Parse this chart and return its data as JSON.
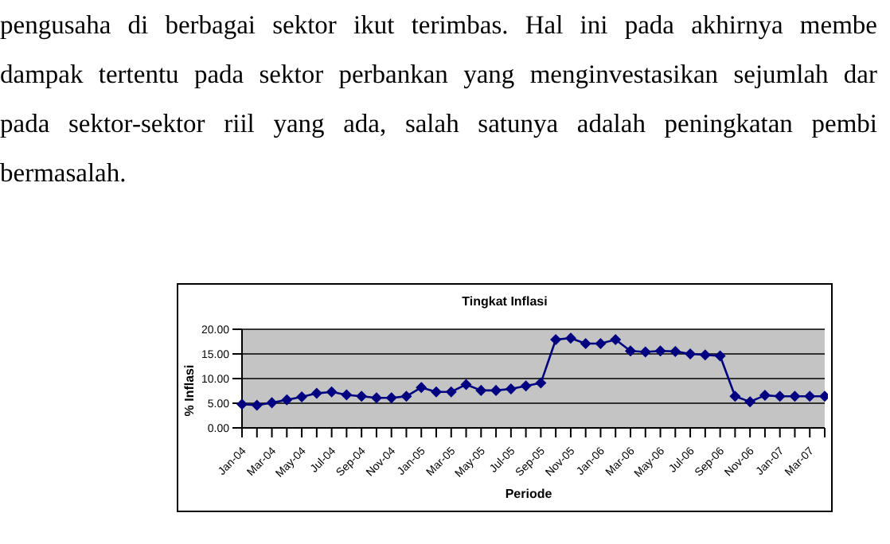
{
  "chart_data": {
    "type": "line",
    "title": "Tingkat Inflasi",
    "xlabel": "Periode",
    "ylabel": "% Inflasi",
    "annotations": [
      "pengusaha di berbagai sektor ikut terimbas. Hal ini pada akhirnya membe",
      "dampak tertentu pada sektor perbankan yang menginvestasikan sejumlah dar",
      "pada sektor-sektor riil yang ada, salah satunya adalah peningkatan pembi",
      "bermasalah."
    ],
    "categories": [
      "Jan-04",
      null,
      "Mar-04",
      null,
      "May-04",
      null,
      "Jul-04",
      null,
      "Sep-04",
      null,
      "Nov-04",
      null,
      "Jan-05",
      null,
      "Mar-05",
      null,
      "May-05",
      null,
      "Jul-05",
      null,
      "Sep-05",
      null,
      "Nov-05",
      null,
      "Jan-06",
      null,
      "Mar-06",
      null,
      "May-06",
      null,
      "Jul-06",
      null,
      "Sep-06",
      null,
      "Nov-06",
      null,
      "Jan-07",
      null,
      "Mar-07",
      null
    ],
    "series": [
      {
        "color": "#000080",
        "values": [
          4.8,
          4.6,
          5.1,
          5.7,
          6.3,
          7.0,
          7.3,
          6.7,
          6.4,
          6.1,
          6.1,
          6.4,
          8.2,
          7.3,
          7.3,
          8.8,
          7.6,
          7.6,
          7.9,
          8.5,
          9.1,
          17.9,
          18.2,
          17.1,
          17.1,
          17.9,
          15.6,
          15.4,
          15.6,
          15.5,
          15.0,
          14.8,
          14.6,
          6.4,
          5.3,
          6.6,
          6.4,
          6.4,
          6.4,
          6.4
        ]
      }
    ],
    "ylim": [
      0,
      20
    ],
    "yticks": [
      {
        "value": 0,
        "label": "0.00"
      },
      {
        "value": 5,
        "label": "5.00"
      },
      {
        "value": 10,
        "label": "10.00"
      },
      {
        "value": 15,
        "label": "15.00"
      },
      {
        "value": 20,
        "label": "20.00"
      }
    ],
    "grid": "y",
    "legend": false,
    "marker": "diamond",
    "line_style": "solid"
  }
}
